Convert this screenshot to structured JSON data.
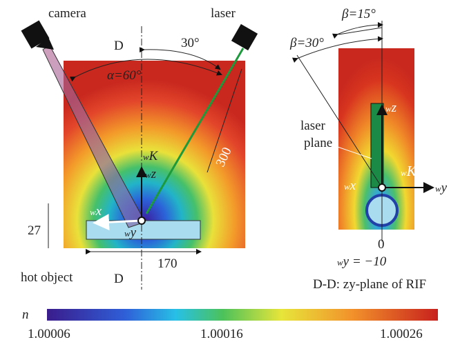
{
  "left_panel": {
    "camera": "camera",
    "laser": "laser",
    "section_top": "D",
    "section_bottom": "D",
    "angle_laser": "30°",
    "angle_alpha": "α=60°",
    "distance": "300",
    "height": "27",
    "width": "170",
    "hot_object": "hot object",
    "axis_K": {
      "sub": "w",
      "label": "K"
    },
    "axis_z": {
      "sub": "w",
      "label": "z"
    },
    "axis_x": {
      "sub": "w",
      "label": "x"
    },
    "axis_y": {
      "sub": "w",
      "label": "y"
    }
  },
  "right_panel": {
    "beta_15": "β=15°",
    "beta_30": "β=30°",
    "laser_plane": [
      "laser",
      "plane"
    ],
    "axis_z": {
      "sub": "w",
      "label": "z"
    },
    "axis_K": {
      "sub": "w",
      "label": "K"
    },
    "axis_x": {
      "sub": "w",
      "label": "x"
    },
    "axis_y": {
      "sub": "w",
      "label": "y"
    },
    "zero": "0",
    "position": {
      "sub": "w",
      "label": "y = −10"
    },
    "caption": "D-D: zy-plane of RIF"
  },
  "colorbar": {
    "symbol": "n",
    "ticks": [
      "1.00006",
      "1.00016",
      "1.00026"
    ]
  }
}
